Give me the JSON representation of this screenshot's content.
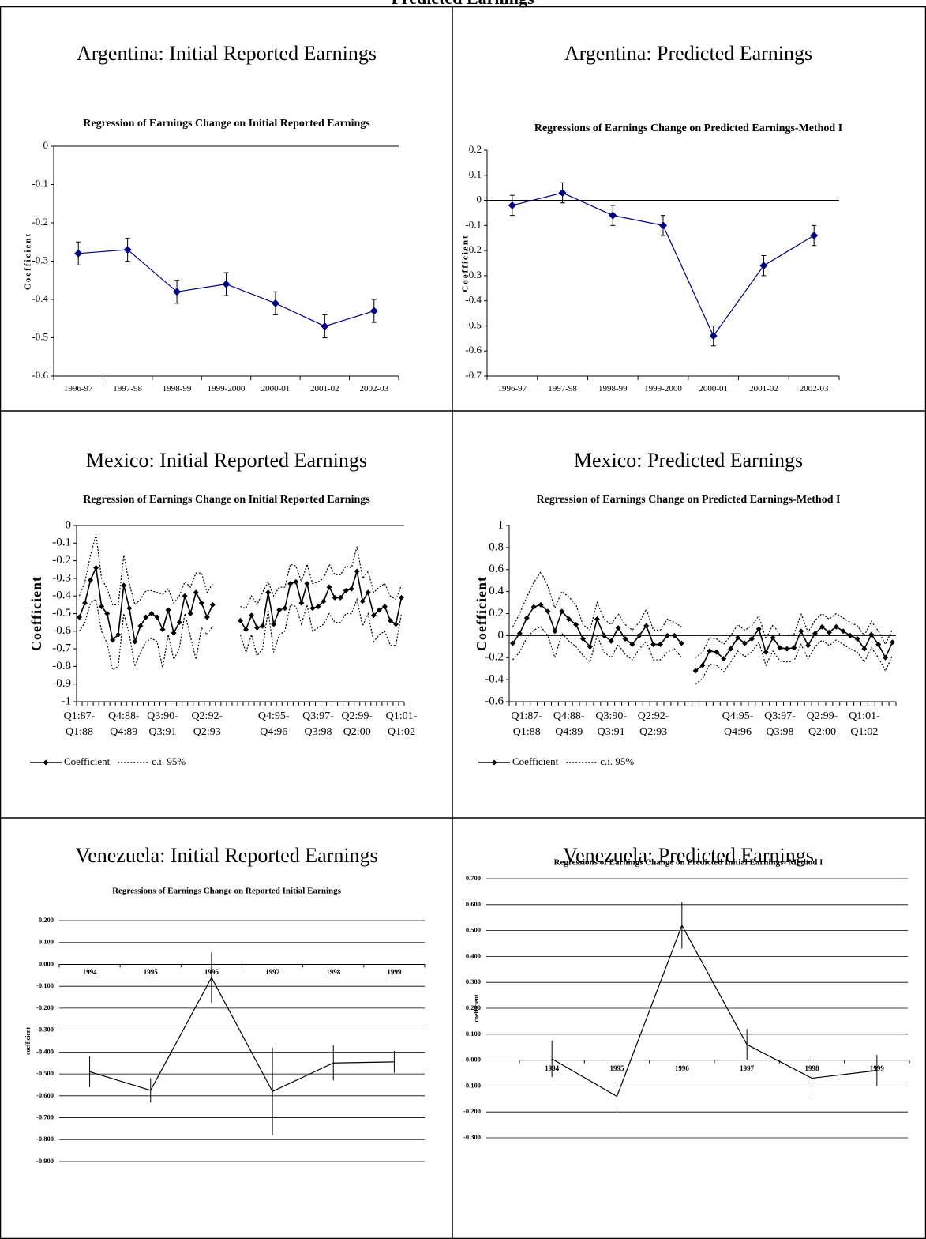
{
  "header": {
    "title": "Predicted Earnings"
  },
  "chart_data": [
    {
      "type": "line",
      "panel_title": "Argentina: Initial Reported Earnings",
      "title": "Regression of Earnings Change on Initial Reported Earnings",
      "y_label": "Coefficient",
      "categories": [
        "1996-97",
        "1997-98",
        "1998-99",
        "1999-2000",
        "2000-01",
        "2001-02",
        "2002-03"
      ],
      "series": [
        {
          "color": "#000080",
          "marker": "diamond",
          "values": [
            -0.28,
            -0.27,
            -0.38,
            -0.36,
            -0.41,
            -0.47,
            -0.43
          ],
          "errors": [
            0.03,
            0.03,
            0.03,
            0.03,
            0.03,
            0.03,
            0.03
          ]
        }
      ],
      "ylim": [
        -0.6,
        0
      ],
      "yticks": [
        0,
        -0.1,
        -0.2,
        -0.3,
        -0.4,
        -0.5,
        -0.6
      ],
      "x_labels": "low",
      "grid": false
    },
    {
      "type": "line",
      "panel_title": "Argentina: Predicted Earnings",
      "title": "Regressions of Earnings Change on Predicted Earnings-Method I",
      "y_label": "Coefficient",
      "categories": [
        "1996-97",
        "1997-98",
        "1998-99",
        "1999-2000",
        "2000-01",
        "2001-02",
        "2002-03"
      ],
      "series": [
        {
          "color": "#000080",
          "marker": "diamond",
          "values": [
            -0.02,
            0.03,
            -0.06,
            -0.1,
            -0.54,
            -0.26,
            -0.14
          ],
          "errors": [
            0.04,
            0.04,
            0.04,
            0.04,
            0.04,
            0.04,
            0.04
          ]
        }
      ],
      "ylim": [
        -0.7,
        0.2
      ],
      "yticks": [
        0.2,
        0.1,
        0,
        -0.1,
        -0.2,
        -0.3,
        -0.4,
        -0.5,
        -0.6,
        -0.7
      ],
      "x_labels": "low",
      "grid": false
    },
    {
      "type": "line",
      "panel_title": "Mexico: Initial Reported Earnings",
      "title": "Regression of Earnings Change on Initial Reported Earnings",
      "y_label": "Coefficient",
      "legend": true,
      "categories": [
        "Q1:87-\nQ1:88",
        null,
        null,
        null,
        null,
        null,
        null,
        null,
        "Q4:88-\nQ4:89",
        null,
        null,
        null,
        null,
        null,
        null,
        "Q3:90-\nQ3:91",
        null,
        null,
        null,
        null,
        null,
        null,
        null,
        "Q2:92-\nQ2:93",
        null,
        null,
        null,
        null,
        null,
        null,
        null,
        null,
        null,
        null,
        null,
        "Q4:95-\nQ4:96",
        null,
        null,
        null,
        null,
        null,
        null,
        null,
        "Q3:97-\nQ3:98",
        null,
        null,
        null,
        null,
        null,
        null,
        "Q2:99-\nQ2:00",
        null,
        null,
        null,
        null,
        null,
        null,
        null,
        "Q1:01-\nQ1:02"
      ],
      "series": [
        {
          "name": "Coefficient",
          "color": "#000000",
          "marker": "diamond",
          "values": [
            -0.52,
            -0.44,
            -0.31,
            -0.24,
            -0.46,
            -0.5,
            -0.65,
            -0.62,
            -0.34,
            -0.47,
            -0.66,
            -0.57,
            -0.52,
            -0.5,
            -0.52,
            -0.59,
            -0.48,
            -0.61,
            -0.55,
            -0.4,
            -0.5,
            -0.38,
            -0.44,
            -0.52,
            -0.45,
            null,
            null,
            null,
            null,
            -0.54,
            -0.59,
            -0.51,
            -0.58,
            -0.57,
            -0.38,
            -0.56,
            -0.48,
            -0.47,
            -0.33,
            -0.32,
            -0.44,
            -0.33,
            -0.47,
            -0.46,
            -0.43,
            -0.35,
            -0.41,
            -0.41,
            -0.37,
            -0.36,
            -0.26,
            -0.43,
            -0.38,
            -0.51,
            -0.48,
            -0.46,
            -0.54,
            -0.56,
            -0.41
          ]
        },
        {
          "name": "c.i. 95%",
          "color": "#000000",
          "marker": "none",
          "line_style": "dotted",
          "values": [
            -0.4,
            -0.32,
            -0.17,
            -0.05,
            -0.3,
            -0.36,
            -0.45,
            -0.45,
            -0.17,
            -0.33,
            -0.45,
            -0.42,
            -0.37,
            -0.37,
            -0.38,
            -0.39,
            -0.36,
            -0.44,
            -0.4,
            -0.32,
            -0.35,
            -0.27,
            -0.27,
            -0.38,
            -0.33,
            null,
            null,
            null,
            null,
            -0.46,
            -0.47,
            -0.4,
            -0.45,
            -0.38,
            -0.32,
            -0.4,
            -0.35,
            -0.35,
            -0.22,
            -0.23,
            -0.32,
            -0.22,
            -0.33,
            -0.32,
            -0.3,
            -0.22,
            -0.28,
            -0.28,
            -0.23,
            -0.24,
            -0.12,
            -0.3,
            -0.26,
            -0.38,
            -0.35,
            -0.33,
            -0.4,
            -0.42,
            -0.34
          ]
        },
        {
          "color": "#000000",
          "marker": "none",
          "line_style": "dotted",
          "values": [
            -0.6,
            -0.55,
            -0.44,
            -0.42,
            -0.6,
            -0.67,
            -0.82,
            -0.8,
            -0.5,
            -0.62,
            -0.8,
            -0.72,
            -0.66,
            -0.64,
            -0.66,
            -0.81,
            -0.62,
            -0.76,
            -0.7,
            -0.5,
            -0.63,
            -0.76,
            -0.58,
            -0.62,
            -0.57,
            null,
            null,
            null,
            null,
            -0.62,
            -0.72,
            -0.62,
            -0.74,
            -0.7,
            -0.48,
            -0.72,
            -0.62,
            -0.6,
            -0.45,
            -0.46,
            -0.56,
            -0.45,
            -0.6,
            -0.58,
            -0.56,
            -0.5,
            -0.55,
            -0.55,
            -0.5,
            -0.5,
            -0.42,
            -0.57,
            -0.5,
            -0.66,
            -0.62,
            -0.6,
            -0.68,
            -0.68,
            -0.5
          ]
        }
      ],
      "ylim": [
        -1,
        0
      ],
      "yticks": [
        0,
        -0.1,
        -0.2,
        -0.3,
        -0.4,
        -0.5,
        -0.6,
        -0.7,
        -0.8,
        -0.9,
        -1
      ],
      "x_labels": "low",
      "grid": false
    },
    {
      "type": "line",
      "panel_title": "Mexico: Predicted Earnings",
      "title": "Regression of Earnings Change on Predicted Earnings-Method I",
      "y_label": "Coefficient",
      "legend": true,
      "categories": [
        null,
        null,
        "Q1:87-\nQ1:88",
        null,
        null,
        null,
        null,
        null,
        "Q4:88-\nQ4:89",
        null,
        null,
        null,
        null,
        null,
        "Q3:90-\nQ3:91",
        null,
        null,
        null,
        null,
        null,
        "Q2:92-\nQ2:93",
        null,
        null,
        null,
        null,
        null,
        null,
        null,
        null,
        null,
        null,
        null,
        "Q4:95-\nQ4:96",
        null,
        null,
        null,
        null,
        null,
        "Q3:97-\nQ3:98",
        null,
        null,
        null,
        null,
        null,
        "Q2:99-\nQ2:00",
        null,
        null,
        null,
        null,
        null,
        "Q1:01-\nQ1:02",
        null,
        null,
        null,
        null
      ],
      "series": [
        {
          "name": "Coefficient",
          "color": "#000000",
          "marker": "diamond",
          "values": [
            -0.07,
            0.02,
            0.16,
            0.26,
            0.28,
            0.22,
            0.04,
            0.22,
            0.15,
            0.1,
            -0.03,
            -0.1,
            0.15,
            0,
            -0.05,
            0.07,
            -0.03,
            -0.08,
            0,
            0.09,
            -0.08,
            -0.08,
            0,
            0,
            -0.07,
            null,
            -0.32,
            -0.27,
            -0.14,
            -0.15,
            -0.21,
            -0.12,
            -0.02,
            -0.07,
            -0.03,
            0.06,
            -0.15,
            -0.02,
            -0.11,
            -0.12,
            -0.11,
            0.04,
            -0.09,
            0.02,
            0.08,
            0.03,
            0.08,
            0.04,
            0,
            -0.03,
            -0.12,
            0.01,
            -0.08,
            -0.2,
            -0.06
          ]
        },
        {
          "name": "c.i. 95%",
          "color": "#000000",
          "marker": "none",
          "line_style": "dotted",
          "values": [
            0.08,
            0.2,
            0.35,
            0.48,
            0.58,
            0.45,
            0.25,
            0.4,
            0.35,
            0.28,
            0.1,
            0.05,
            0.3,
            0.15,
            0.1,
            0.2,
            0.1,
            0.05,
            0.12,
            0.24,
            0.05,
            0.05,
            0.15,
            0.12,
            0.08,
            null,
            -0.2,
            -0.15,
            -0.02,
            -0.03,
            -0.08,
            0,
            0.1,
            0.05,
            0.09,
            0.18,
            -0.03,
            0.1,
            0.01,
            0,
            0.01,
            0.2,
            0.03,
            0.14,
            0.2,
            0.15,
            0.2,
            0.16,
            0.12,
            0.09,
            0,
            0.13,
            0.04,
            -0.08,
            0.06
          ]
        },
        {
          "color": "#000000",
          "marker": "none",
          "line_style": "dotted",
          "values": [
            -0.22,
            -0.15,
            -0.02,
            0.05,
            0.08,
            0,
            -0.2,
            0.02,
            -0.05,
            -0.1,
            -0.18,
            -0.24,
            0,
            -0.15,
            -0.2,
            -0.08,
            -0.17,
            -0.22,
            -0.12,
            -0.05,
            -0.22,
            -0.22,
            -0.15,
            -0.12,
            -0.2,
            null,
            -0.44,
            -0.39,
            -0.26,
            -0.27,
            -0.33,
            -0.24,
            -0.14,
            -0.19,
            -0.15,
            -0.06,
            -0.27,
            -0.14,
            -0.23,
            -0.24,
            -0.23,
            -0.08,
            -0.21,
            -0.1,
            -0.04,
            -0.09,
            -0.04,
            -0.08,
            -0.12,
            -0.15,
            -0.24,
            -0.11,
            -0.2,
            -0.32,
            -0.18
          ]
        }
      ],
      "ylim": [
        -0.6,
        1
      ],
      "yticks": [
        1,
        0.8,
        0.6,
        0.4,
        0.2,
        0,
        -0.2,
        -0.4,
        -0.6
      ],
      "x_labels": "low",
      "grid": false
    },
    {
      "type": "line",
      "panel_title": "Venezuela: Initial Reported Earnings",
      "title": "Regressions of  Earnings Change on Reported Initial Earnings",
      "y_label": "coefficient",
      "categories": [
        "1994",
        "1995",
        "1996",
        "1997",
        "1998",
        "1999"
      ],
      "series": [
        {
          "color": "#000000",
          "marker": "none",
          "values": [
            -0.49,
            -0.575,
            -0.06,
            -0.58,
            -0.45,
            -0.445
          ],
          "errors": [
            0.07,
            0.055,
            0.115,
            0.2,
            0.08,
            0.05
          ]
        }
      ],
      "ylim": [
        -0.9,
        0.2
      ],
      "yticks": [
        {
          "value": 0.2,
          "label": "0.200"
        },
        {
          "value": 0.1,
          "label": "0.100"
        },
        {
          "value": 0,
          "label": "0.000"
        },
        {
          "value": -0.1,
          "label": "-0.100"
        },
        {
          "value": -0.2,
          "label": "-0.200"
        },
        {
          "value": -0.3,
          "label": "-0.300"
        },
        {
          "value": -0.4,
          "label": "-0.400"
        },
        {
          "value": -0.5,
          "label": "-0.500"
        },
        {
          "value": -0.6,
          "label": "-0.600"
        },
        {
          "value": -0.7,
          "label": "-0.700"
        },
        {
          "value": -0.8,
          "label": "-0.800"
        },
        {
          "value": -0.9,
          "label": "-0.900"
        }
      ],
      "x_labels": "axis",
      "grid": true
    },
    {
      "type": "line",
      "panel_title": "Venezuela: Predicted Earnings",
      "title": "Regressions of  Earnings Change on Predicted Initial Earnings- Method I",
      "y_label": "coefficient",
      "categories": [
        "1994",
        "1995",
        "1996",
        "1997",
        "1998",
        "1999"
      ],
      "series": [
        {
          "color": "#000000",
          "marker": "none",
          "values": [
            0.005,
            -0.14,
            0.52,
            0.06,
            -0.07,
            -0.04
          ],
          "errors": [
            0.07,
            0.06,
            0.09,
            0.06,
            0.075,
            0.06
          ]
        }
      ],
      "ylim": [
        -0.3,
        0.7
      ],
      "yticks": [
        {
          "value": 0.7,
          "label": "0.700"
        },
        {
          "value": 0.6,
          "label": "0.600"
        },
        {
          "value": 0.5,
          "label": "0.500"
        },
        {
          "value": 0.4,
          "label": "0.400"
        },
        {
          "value": 0.3,
          "label": "0.300"
        },
        {
          "value": 0.2,
          "label": "0.200"
        },
        {
          "value": 0.1,
          "label": "0.100"
        },
        {
          "value": 0,
          "label": "0.000"
        },
        {
          "value": -0.1,
          "label": "-0.100"
        },
        {
          "value": -0.2,
          "label": "-0.200"
        },
        {
          "value": -0.3,
          "label": "-0.300"
        }
      ],
      "x_labels": "axis",
      "grid": true
    }
  ]
}
